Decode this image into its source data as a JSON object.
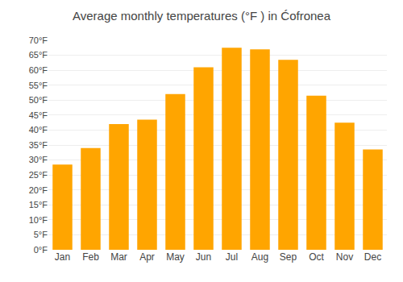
{
  "chart_data": {
    "type": "bar",
    "title": "Average monthly temperatures (°F ) in Ćofronea",
    "categories": [
      "Jan",
      "Feb",
      "Mar",
      "Apr",
      "May",
      "Jun",
      "Jul",
      "Aug",
      "Sep",
      "Oct",
      "Nov",
      "Dec"
    ],
    "values": [
      28.5,
      34.0,
      42.0,
      43.5,
      52.0,
      61.0,
      67.5,
      67.0,
      63.5,
      51.5,
      42.5,
      33.5
    ],
    "color": "#FFA500",
    "ylim": [
      0,
      70
    ],
    "yticks": [
      {
        "value": 0,
        "label": "0°F"
      },
      {
        "value": 5,
        "label": "5°F"
      },
      {
        "value": 10,
        "label": "10°F"
      },
      {
        "value": 15,
        "label": "15°F"
      },
      {
        "value": 20,
        "label": "20°F"
      },
      {
        "value": 25,
        "label": "25°F"
      },
      {
        "value": 30,
        "label": "30°F"
      },
      {
        "value": 35,
        "label": "35°F"
      },
      {
        "value": 40,
        "label": "40°F"
      },
      {
        "value": 45,
        "label": "45°F"
      },
      {
        "value": 50,
        "label": "50°F"
      },
      {
        "value": 55,
        "label": "55°F"
      },
      {
        "value": 60,
        "label": "60°F"
      },
      {
        "value": 65,
        "label": "65°F"
      },
      {
        "value": 70,
        "label": "70°F"
      }
    ],
    "grid": true
  }
}
